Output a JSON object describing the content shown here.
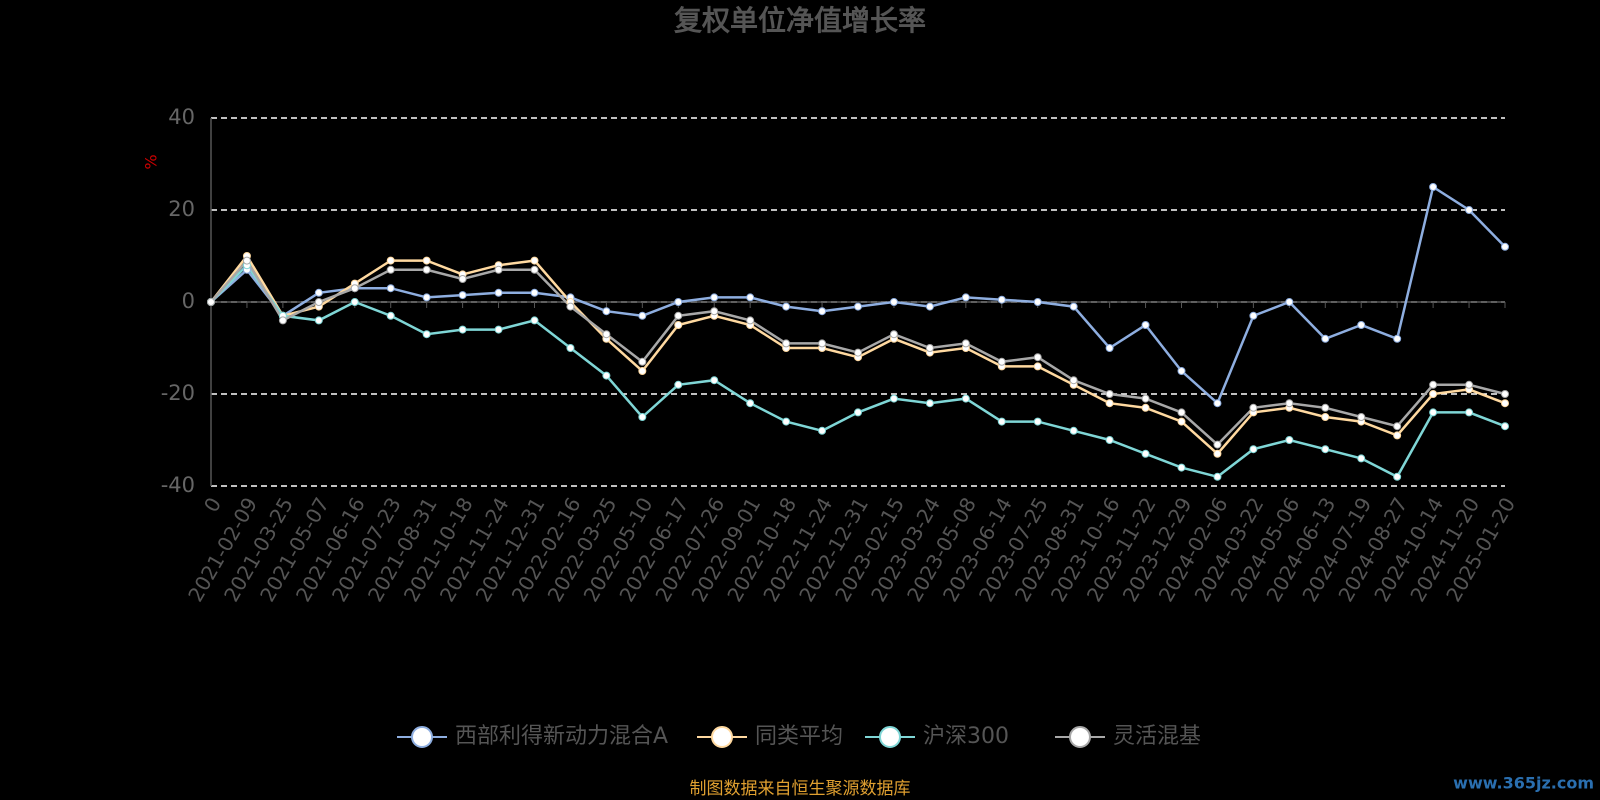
{
  "chart_data": {
    "type": "line",
    "title": "复权单位净值增长率",
    "y_label": "%",
    "source": "制图数据来自恒生聚源数据库",
    "watermark": "www.365jz.com",
    "categories": [
      "0",
      "2021-02-09",
      "2021-03-25",
      "2021-05-07",
      "2021-06-16",
      "2021-07-23",
      "2021-08-31",
      "2021-10-18",
      "2021-11-24",
      "2021-12-31",
      "2022-02-16",
      "2022-03-25",
      "2022-05-10",
      "2022-06-17",
      "2022-07-26",
      "2022-09-01",
      "2022-10-18",
      "2022-11-24",
      "2022-12-31",
      "2023-02-15",
      "2023-03-24",
      "2023-05-08",
      "2023-06-14",
      "2023-07-25",
      "2023-08-31",
      "2023-10-16",
      "2023-11-22",
      "2023-12-29",
      "2024-02-06",
      "2024-03-22",
      "2024-05-06",
      "2024-06-13",
      "2024-07-19",
      "2024-08-27",
      "2024-10-14",
      "2024-11-20",
      "2025-01-20"
    ],
    "series": [
      {
        "name": "西部利得新动力混合A",
        "color": "#8eaee0",
        "values": [
          0,
          7,
          -3,
          2,
          3,
          3,
          1,
          1.5,
          2,
          2,
          1,
          -2,
          -3,
          0,
          1,
          1,
          -1,
          -2,
          -1,
          0,
          -1,
          1,
          0.5,
          0,
          -1,
          -10,
          -5,
          -15,
          -22,
          -3,
          0,
          -8,
          -5,
          -8,
          25,
          20,
          12
        ]
      },
      {
        "name": "同类平均",
        "color": "#ffd9a0",
        "values": [
          0,
          10,
          -3,
          -1,
          4,
          9,
          9,
          6,
          8,
          9,
          0,
          -8,
          -15,
          -5,
          -3,
          -5,
          -10,
          -10,
          -12,
          -8,
          -11,
          -10,
          -14,
          -14,
          -18,
          -22,
          -23,
          -26,
          -33,
          -24,
          -23,
          -25,
          -26,
          -29,
          -20,
          -19,
          -22
        ]
      },
      {
        "name": "沪深300",
        "color": "#7fd6d6",
        "values": [
          0,
          8,
          -3,
          -4,
          0,
          -3,
          -7,
          -6,
          -6,
          -4,
          -10,
          -16,
          -25,
          -18,
          -17,
          -22,
          -26,
          -28,
          -24,
          -21,
          -22,
          -21,
          -26,
          -26,
          -28,
          -30,
          -33,
          -36,
          -38,
          -32,
          -30,
          -32,
          -34,
          -38,
          -24,
          -24,
          -27
        ]
      },
      {
        "name": "灵活混基",
        "color": "#a8a8a8",
        "values": [
          0,
          9,
          -4,
          0,
          3,
          7,
          7,
          5,
          7,
          7,
          -1,
          -7,
          -13,
          -3,
          -2,
          -4,
          -9,
          -9,
          -11,
          -7,
          -10,
          -9,
          -13,
          -12,
          -17,
          -20,
          -21,
          -24,
          -31,
          -23,
          -22,
          -23,
          -25,
          -27,
          -18,
          -18,
          -20
        ]
      }
    ],
    "ylim": [
      -40,
      40
    ],
    "yticks": [
      -40,
      -20,
      0,
      20,
      40
    ],
    "grid": true
  }
}
